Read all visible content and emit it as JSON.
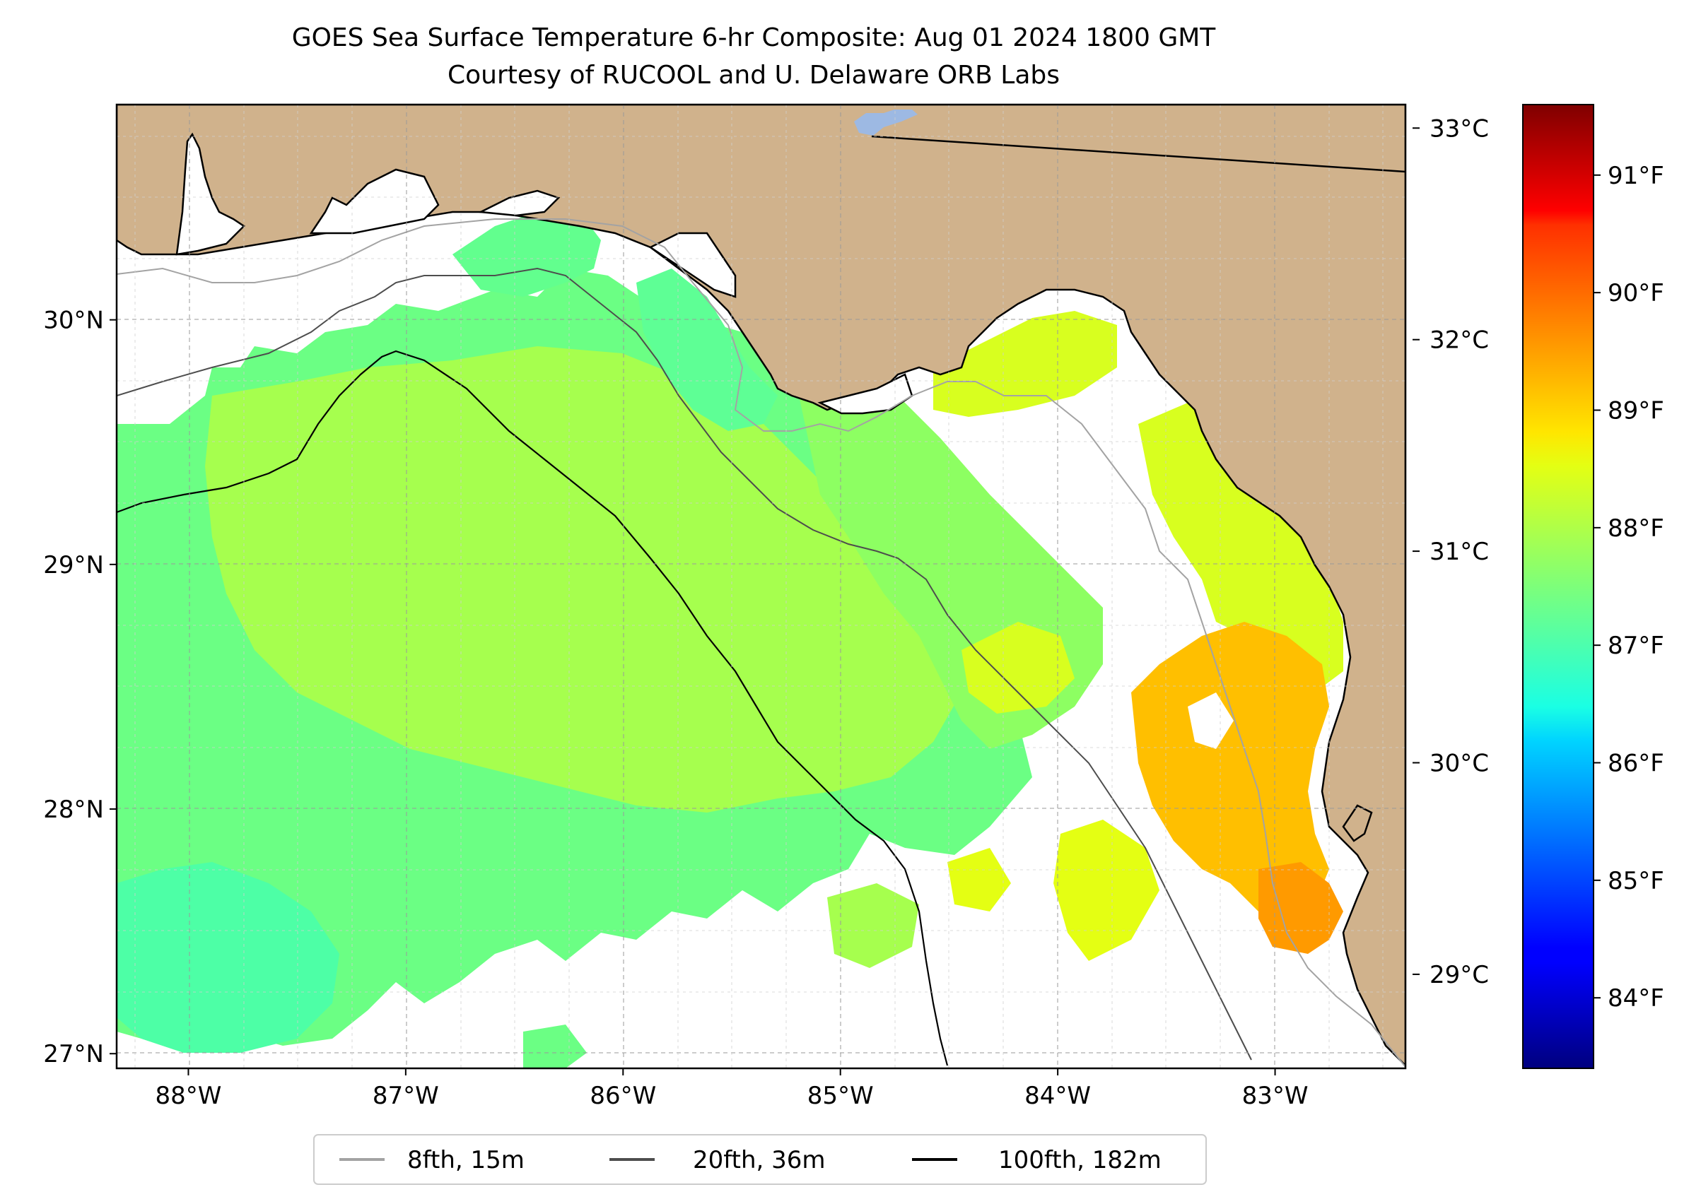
{
  "title": {
    "line1": "GOES Sea Surface Temperature 6-hr Composite: Aug 01 2024 1800 GMT",
    "line2": "Courtesy of RUCOOL and U. Delaware ORB Labs"
  },
  "map": {
    "lon_range": [
      -88.33,
      -82.4
    ],
    "lat_range": [
      26.94,
      30.88
    ],
    "lon_ticks": [
      {
        "value": -88,
        "label": "88°W"
      },
      {
        "value": -87,
        "label": "87°W"
      },
      {
        "value": -86,
        "label": "86°W"
      },
      {
        "value": -85,
        "label": "85°W"
      },
      {
        "value": -84,
        "label": "84°W"
      },
      {
        "value": -83,
        "label": "83°W"
      }
    ],
    "lat_ticks": [
      {
        "value": 27,
        "label": "27°N"
      },
      {
        "value": 28,
        "label": "28°N"
      },
      {
        "value": 29,
        "label": "29°N"
      },
      {
        "value": 30,
        "label": "30°N"
      }
    ],
    "gridlines": "dashed",
    "colors": {
      "land": "#d0b28c",
      "lake": "#9db9e3",
      "no_data": "#ffffff",
      "coast": "#000000"
    }
  },
  "legend": {
    "placement": "bottom-center",
    "items": [
      {
        "label": "8fth, 15m",
        "color": "#a3a3a3"
      },
      {
        "label": "20fth, 36m",
        "color": "#4d4d4d"
      },
      {
        "label": "100fth, 182m",
        "color": "#000000"
      }
    ]
  },
  "colorbar": {
    "colormap": "jet",
    "celsius_ticks": [
      {
        "value": 29,
        "label": "29°C"
      },
      {
        "value": 30,
        "label": "30°C"
      },
      {
        "value": 31,
        "label": "31°C"
      },
      {
        "value": 32,
        "label": "32°C"
      },
      {
        "value": 33,
        "label": "33°C"
      }
    ],
    "fahrenheit_ticks": [
      {
        "value": 84,
        "label": "84°F"
      },
      {
        "value": 85,
        "label": "85°F"
      },
      {
        "value": 86,
        "label": "86°F"
      },
      {
        "value": 87,
        "label": "87°F"
      },
      {
        "value": 88,
        "label": "88°F"
      },
      {
        "value": 89,
        "label": "89°F"
      },
      {
        "value": 90,
        "label": "90°F"
      },
      {
        "value": 91,
        "label": "91°F"
      }
    ],
    "f_range": [
      83.4,
      91.6
    ]
  }
}
